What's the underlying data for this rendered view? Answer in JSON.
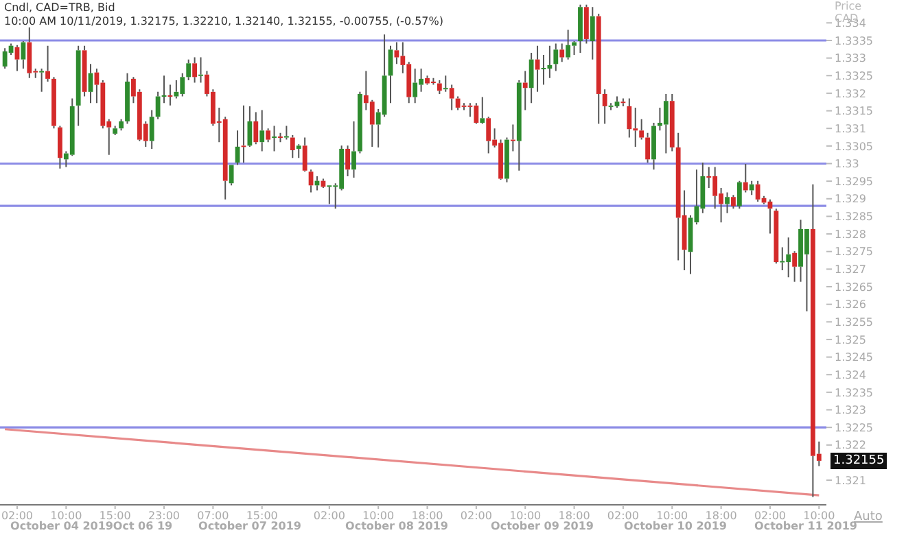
{
  "chart_data": {
    "type": "candlestick",
    "title": "Cndl, CAD=TRB, Bid",
    "subtitle": "10:00 AM 10/11/2019, 1.32175, 1.32210, 1.32140, 1.32155, -0.00755, (-0.57%)",
    "ylabel": "Price CAD",
    "categories": [
      null,
      null,
      "02:00",
      null,
      null,
      null,
      null,
      null,
      null,
      null,
      "10:00",
      null,
      null,
      null,
      null,
      null,
      null,
      null,
      "15:00",
      null,
      null,
      null,
      null,
      null,
      null,
      null,
      "23:00",
      null,
      null,
      null,
      null,
      null,
      null,
      null,
      "07:00",
      null,
      null,
      null,
      null,
      null,
      null,
      null,
      "15:00",
      null,
      null,
      null,
      null,
      null,
      null,
      null,
      null,
      null,
      null,
      "02:00",
      null,
      null,
      null,
      null,
      null,
      null,
      null,
      "10:00",
      null,
      null,
      null,
      null,
      null,
      null,
      null,
      "18:00",
      null,
      null,
      null,
      null,
      null,
      null,
      null,
      "02:00",
      null,
      null,
      null,
      null,
      null,
      null,
      null,
      "10:00",
      null,
      null,
      null,
      null,
      null,
      null,
      null,
      "18:00",
      null,
      null,
      null,
      null,
      null,
      null,
      null,
      "02:00",
      null,
      null,
      null,
      null,
      null,
      null,
      null,
      "10:00",
      null,
      null,
      null,
      null,
      null,
      null,
      null,
      "18:00",
      null,
      null,
      null,
      null,
      null,
      null,
      null,
      "02:00",
      null,
      null,
      null,
      null,
      null,
      null,
      null,
      "10:00"
    ],
    "ohlc": [
      [
        1.33276,
        1.33328,
        1.3327,
        1.33319
      ],
      [
        1.33315,
        1.33341,
        1.33309,
        1.33335
      ],
      [
        1.33331,
        1.33337,
        1.33263,
        1.33296
      ],
      [
        1.33296,
        1.33348,
        1.3327,
        1.33345
      ],
      [
        1.33345,
        1.33387,
        1.33243,
        1.33257
      ],
      [
        1.33263,
        1.3327,
        1.33243,
        1.3326
      ],
      [
        1.3326,
        1.3327,
        1.33204,
        1.33263
      ],
      [
        1.33263,
        1.33335,
        1.33233,
        1.33241
      ],
      [
        1.33241,
        1.33246,
        1.331,
        1.33107
      ],
      [
        1.33103,
        1.33107,
        1.32986,
        1.33016
      ],
      [
        1.33012,
        1.33035,
        1.3299,
        1.33029
      ],
      [
        1.33025,
        1.33185,
        1.33022,
        1.33163
      ],
      [
        1.33165,
        1.33335,
        1.33107,
        1.33322
      ],
      [
        1.33322,
        1.33335,
        1.33191,
        1.33204
      ],
      [
        1.33204,
        1.33283,
        1.33172,
        1.33257
      ],
      [
        1.33259,
        1.3327,
        1.33172,
        1.33224
      ],
      [
        1.3323,
        1.33237,
        1.331,
        1.33107
      ],
      [
        1.3312,
        1.33126,
        1.33025,
        1.33103
      ],
      [
        1.33085,
        1.33107,
        1.33081,
        1.331
      ],
      [
        1.331,
        1.33126,
        1.33094,
        1.3312
      ],
      [
        1.3312,
        1.33257,
        1.33113,
        1.33233
      ],
      [
        1.33241,
        1.33246,
        1.33172,
        1.33191
      ],
      [
        1.33204,
        1.33211,
        1.33064,
        1.33068
      ],
      [
        1.33113,
        1.3312,
        1.33048,
        1.33064
      ],
      [
        1.33064,
        1.33152,
        1.33042,
        1.33133
      ],
      [
        1.33133,
        1.33204,
        1.33126,
        1.33191
      ],
      [
        1.33191,
        1.3325,
        1.33172,
        1.33194
      ],
      [
        1.33194,
        1.33224,
        1.33165,
        1.33191
      ],
      [
        1.33191,
        1.33237,
        1.33185,
        1.33204
      ],
      [
        1.33198,
        1.33257,
        1.33191,
        1.33246
      ],
      [
        1.33246,
        1.33296,
        1.33237,
        1.33285
      ],
      [
        1.33285,
        1.33302,
        1.3323,
        1.33246
      ],
      [
        1.3325,
        1.33302,
        1.3323,
        1.33253
      ],
      [
        1.33253,
        1.33263,
        1.33191,
        1.33198
      ],
      [
        1.33204,
        1.33211,
        1.33107,
        1.33113
      ],
      [
        1.3312,
        1.33159,
        1.33061,
        1.33117
      ],
      [
        1.33126,
        1.33133,
        1.32898,
        1.32951
      ],
      [
        1.32944,
        1.32996,
        1.32938,
        1.32996
      ],
      [
        1.33003,
        1.33094,
        1.32996,
        1.33048
      ],
      [
        1.33051,
        1.33165,
        1.33003,
        1.33048
      ],
      [
        1.33051,
        1.33163,
        1.33048,
        1.3312
      ],
      [
        1.3312,
        1.33146,
        1.33055,
        1.33061
      ],
      [
        1.33061,
        1.33152,
        1.33035,
        1.33094
      ],
      [
        1.33094,
        1.331,
        1.33061,
        1.33068
      ],
      [
        1.33074,
        1.33107,
        1.33035,
        1.33077
      ],
      [
        1.33077,
        1.33087,
        1.33061,
        1.33074
      ],
      [
        1.33074,
        1.33107,
        1.33068,
        1.33078
      ],
      [
        1.33074,
        1.33081,
        1.33016,
        1.33038
      ],
      [
        1.33042,
        1.33055,
        1.33016,
        1.33051
      ],
      [
        1.33051,
        1.33074,
        1.32977,
        1.3298
      ],
      [
        1.32977,
        1.32983,
        1.32918,
        1.32938
      ],
      [
        1.32938,
        1.32964,
        1.32924,
        1.32951
      ],
      [
        1.32951,
        1.32957,
        1.32931,
        1.32934
      ],
      [
        1.32934,
        1.32938,
        1.32885,
        1.32938
      ],
      [
        1.32934,
        1.32944,
        1.32872,
        1.32938
      ],
      [
        1.32928,
        1.33051,
        1.32924,
        1.33042
      ],
      [
        1.33042,
        1.33051,
        1.32964,
        1.32983
      ],
      [
        1.32983,
        1.3312,
        1.3296,
        1.33035
      ],
      [
        1.33035,
        1.33204,
        1.33029,
        1.33198
      ],
      [
        1.33194,
        1.33263,
        1.33152,
        1.33172
      ],
      [
        1.33176,
        1.33181,
        1.33048,
        1.33111
      ],
      [
        1.33111,
        1.33155,
        1.33046,
        1.33146
      ],
      [
        1.33139,
        1.33367,
        1.33133,
        1.3325
      ],
      [
        1.3325,
        1.33335,
        1.33172,
        1.33324
      ],
      [
        1.33322,
        1.33345,
        1.33283,
        1.33302
      ],
      [
        1.33306,
        1.33345,
        1.33257,
        1.3328
      ],
      [
        1.33283,
        1.33289,
        1.33172,
        1.33189
      ],
      [
        1.33189,
        1.3327,
        1.33172,
        1.3323
      ],
      [
        1.33224,
        1.3327,
        1.33204,
        1.33241
      ],
      [
        1.33243,
        1.3325,
        1.33224,
        1.33228
      ],
      [
        1.33233,
        1.33243,
        1.33224,
        1.33231
      ],
      [
        1.33228,
        1.33237,
        1.33198,
        1.33207
      ],
      [
        1.33213,
        1.3325,
        1.33204,
        1.33215
      ],
      [
        1.33215,
        1.33224,
        1.33152,
        1.33185
      ],
      [
        1.33185,
        1.33191,
        1.33152,
        1.33159
      ],
      [
        1.33165,
        1.33172,
        1.33152,
        1.33163
      ],
      [
        1.33165,
        1.33172,
        1.33133,
        1.33163
      ],
      [
        1.33165,
        1.33172,
        1.33113,
        1.33116
      ],
      [
        1.33116,
        1.33189,
        1.33113,
        1.33129
      ],
      [
        1.33129,
        1.33133,
        1.33029,
        1.33064
      ],
      [
        1.33068,
        1.331,
        1.33046,
        1.33051
      ],
      [
        1.33059,
        1.33068,
        1.32954,
        1.32957
      ],
      [
        1.32957,
        1.33074,
        1.32947,
        1.33068
      ],
      [
        1.33068,
        1.33111,
        1.33035,
        1.33064
      ],
      [
        1.33064,
        1.33237,
        1.3298,
        1.3323
      ],
      [
        1.3323,
        1.33263,
        1.33152,
        1.33215
      ],
      [
        1.33215,
        1.33315,
        1.33172,
        1.33296
      ],
      [
        1.33296,
        1.33335,
        1.33204,
        1.33267
      ],
      [
        1.3327,
        1.33309,
        1.33224,
        1.33272
      ],
      [
        1.3327,
        1.33335,
        1.33243,
        1.3328
      ],
      [
        1.33283,
        1.33341,
        1.33263,
        1.33324
      ],
      [
        1.33324,
        1.33341,
        1.33289,
        1.33302
      ],
      [
        1.33302,
        1.3338,
        1.33296,
        1.33337
      ],
      [
        1.33335,
        1.33348,
        1.33309,
        1.33345
      ],
      [
        1.33348,
        1.33452,
        1.33315,
        1.33445
      ],
      [
        1.33445,
        1.33452,
        1.33341,
        1.33354
      ],
      [
        1.33348,
        1.33445,
        1.33296,
        1.33419
      ],
      [
        1.33419,
        1.33426,
        1.33113,
        1.33198
      ],
      [
        1.33198,
        1.33211,
        1.33113,
        1.33163
      ],
      [
        1.33163,
        1.33172,
        1.33152,
        1.33165
      ],
      [
        1.33163,
        1.33191,
        1.33159,
        1.33176
      ],
      [
        1.33176,
        1.33185,
        1.33163,
        1.33174
      ],
      [
        1.33163,
        1.33185,
        1.33074,
        1.33098
      ],
      [
        1.331,
        1.33159,
        1.33048,
        1.33094
      ],
      [
        1.33094,
        1.33126,
        1.33068,
        1.33074
      ],
      [
        1.33074,
        1.33087,
        1.33003,
        1.33012
      ],
      [
        1.33012,
        1.33116,
        1.32983,
        1.33107
      ],
      [
        1.33107,
        1.33159,
        1.33094,
        1.33116
      ],
      [
        1.33111,
        1.33198,
        1.33029,
        1.33178
      ],
      [
        1.33178,
        1.33198,
        1.33035,
        1.33046
      ],
      [
        1.33046,
        1.33087,
        1.32725,
        1.32846
      ],
      [
        1.32853,
        1.32924,
        1.32697,
        1.32755
      ],
      [
        1.32749,
        1.32853,
        1.32686,
        1.32846
      ],
      [
        1.32833,
        1.32983,
        1.32827,
        1.32879
      ],
      [
        1.32872,
        1.33003,
        1.32859,
        1.32964
      ],
      [
        1.32964,
        1.3299,
        1.32931,
        1.32962
      ],
      [
        1.32964,
        1.3299,
        1.32872,
        1.32908
      ],
      [
        1.32915,
        1.32931,
        1.32833,
        1.32885
      ],
      [
        1.32885,
        1.32918,
        1.32859,
        1.32905
      ],
      [
        1.32905,
        1.32911,
        1.32872,
        1.32879
      ],
      [
        1.32879,
        1.32951,
        1.32872,
        1.32947
      ],
      [
        1.32947,
        1.32999,
        1.32918,
        1.32924
      ],
      [
        1.32924,
        1.32951,
        1.32911,
        1.32941
      ],
      [
        1.32941,
        1.32951,
        1.32892,
        1.32898
      ],
      [
        1.32902,
        1.32908,
        1.32885,
        1.32889
      ],
      [
        1.32892,
        1.32898,
        1.32801,
        1.32872
      ],
      [
        1.32866,
        1.32872,
        1.32716,
        1.3272
      ],
      [
        1.3272,
        1.32762,
        1.32697,
        1.32723
      ],
      [
        1.3272,
        1.3279,
        1.32677,
        1.32742
      ],
      [
        1.32746,
        1.32751,
        1.32664,
        1.32707
      ],
      [
        1.32707,
        1.3284,
        1.32664,
        1.32814
      ],
      [
        1.32742,
        1.32814,
        1.3258,
        1.32814
      ],
      [
        1.32814,
        1.32941,
        1.32052,
        1.32169
      ],
      [
        1.32175,
        1.3221,
        1.3214,
        1.32155
      ]
    ],
    "series": [
      {
        "type": "line",
        "color": "#e88a8a",
        "values": [
          1.32245,
          null,
          null,
          null,
          null,
          null,
          null,
          null,
          null,
          null,
          null,
          null,
          null,
          null,
          null,
          null,
          null,
          null,
          null,
          null,
          null,
          null,
          null,
          null,
          null,
          null,
          null,
          null,
          null,
          null,
          null,
          null,
          null,
          null,
          null,
          null,
          null,
          null,
          null,
          null,
          null,
          null,
          null,
          null,
          null,
          null,
          null,
          null,
          null,
          null,
          null,
          null,
          null,
          null,
          null,
          null,
          null,
          null,
          null,
          null,
          null,
          null,
          null,
          null,
          null,
          null,
          null,
          null,
          null,
          null,
          null,
          null,
          null,
          null,
          null,
          null,
          null,
          null,
          null,
          null,
          null,
          null,
          null,
          null,
          null,
          null,
          null,
          null,
          null,
          null,
          null,
          null,
          null,
          null,
          null,
          null,
          null,
          null,
          null,
          null,
          null,
          null,
          null,
          null,
          null,
          null,
          null,
          null,
          null,
          null,
          null,
          null,
          null,
          null,
          null,
          null,
          null,
          null,
          null,
          null,
          null,
          null,
          null,
          null,
          null,
          null,
          null,
          null,
          null,
          null,
          null,
          null,
          null,
          1.32057
        ]
      }
    ],
    "ylim": [
      1.3203,
      1.33465
    ],
    "yticks": [
      1.321,
      1.322,
      1.3225,
      1.323,
      1.3235,
      1.324,
      1.3245,
      1.325,
      1.3255,
      1.326,
      1.3265,
      1.327,
      1.3275,
      1.328,
      1.3285,
      1.329,
      1.3295,
      1.33,
      1.3305,
      1.331,
      1.3315,
      1.332,
      1.3325,
      1.333,
      1.3335,
      1.334
    ],
    "ref_lines": [
      {
        "axis": "y",
        "value": 1.3335,
        "color": "#8c8ce6"
      },
      {
        "axis": "y",
        "value": 1.33,
        "color": "#8c8ce6"
      },
      {
        "axis": "y",
        "value": 1.3288,
        "color": "#8c8ce6"
      },
      {
        "axis": "y",
        "value": 1.3225,
        "color": "#8c8ce6"
      }
    ],
    "annotations": [
      "October 04 2019",
      "Oct 06 19",
      "October 07 2019",
      "October 08 2019",
      "October 09 2019",
      "October 10 2019",
      "October 11 2019",
      "1.32155",
      "Auto"
    ]
  }
}
